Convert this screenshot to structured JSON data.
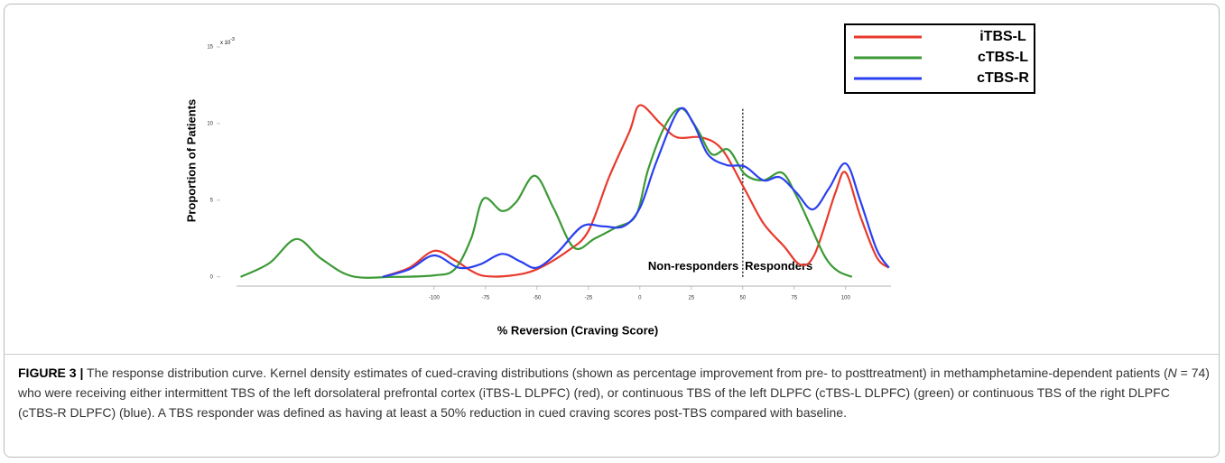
{
  "chart_data": {
    "type": "line",
    "xlabel": "% Reversion (Craving Score)",
    "ylabel": "Proportion  of Patients",
    "y_multiplier": {
      "base": "x 10",
      "exponent": "-3"
    },
    "xlim": [
      -196,
      122
    ],
    "ylim": [
      -0.6,
      15
    ],
    "xticks": [
      -100,
      -75,
      -50,
      -25,
      0,
      25,
      50,
      75,
      100
    ],
    "yticks": [
      0,
      5,
      10,
      15
    ],
    "legend": "top-right",
    "threshold": {
      "x": 50,
      "top": 11
    },
    "annotations": [
      {
        "text": "Non-responders",
        "x": 48,
        "y": 0.2,
        "align": "end"
      },
      {
        "text": "Responders",
        "x": 51,
        "y": 0.2,
        "align": "start"
      }
    ],
    "series": [
      {
        "name": "iTBS-L",
        "color": "#e8392c",
        "x": [
          -125,
          -112,
          -100,
          -90,
          -82,
          -75,
          -62,
          -50,
          -35,
          -25,
          -15,
          -5,
          0,
          10,
          18,
          30,
          40,
          51,
          60,
          70,
          78,
          85,
          95,
          100,
          107,
          115,
          121
        ],
        "values": [
          0,
          0.6,
          1.7,
          1.1,
          0.4,
          0.05,
          0.1,
          0.5,
          1.7,
          3.0,
          6.5,
          9.5,
          11.2,
          10.0,
          9.1,
          9.1,
          8.3,
          5.7,
          3.5,
          2.0,
          0.8,
          1.5,
          5.5,
          6.8,
          4.0,
          1.3,
          0.6
        ]
      },
      {
        "name": "cTBS-L",
        "color": "#3b9a35",
        "x": [
          -194,
          -180,
          -167,
          -155,
          -140,
          -120,
          -100,
          -90,
          -82,
          -76,
          -67,
          -60,
          -51,
          -42,
          -32,
          -22,
          -12,
          -2,
          4,
          12,
          20,
          28,
          35,
          43,
          51,
          60,
          69,
          76,
          83,
          90,
          96,
          103
        ],
        "values": [
          0,
          0.9,
          2.47,
          1.2,
          0.05,
          0,
          0.1,
          0.5,
          2.5,
          5.1,
          4.3,
          4.9,
          6.6,
          4.5,
          1.9,
          2.5,
          3.2,
          4.0,
          7.0,
          9.8,
          11.0,
          9.6,
          8.0,
          8.3,
          6.7,
          6.3,
          6.8,
          5.3,
          3.3,
          1.3,
          0.4,
          0
        ]
      },
      {
        "name": "cTBS-R",
        "color": "#2a3ff0",
        "x": [
          -125,
          -112,
          -100,
          -88,
          -78,
          -67,
          -58,
          -50,
          -40,
          -28,
          -18,
          -8,
          0,
          8,
          19,
          26,
          33,
          42,
          51,
          60,
          68,
          76,
          84,
          92,
          100,
          107,
          115,
          121
        ],
        "values": [
          0,
          0.5,
          1.4,
          0.6,
          0.8,
          1.5,
          1.0,
          0.6,
          1.6,
          3.3,
          3.3,
          3.3,
          4.5,
          7.5,
          10.9,
          10.0,
          8.0,
          7.3,
          7.2,
          6.3,
          6.5,
          5.5,
          4.4,
          5.8,
          7.4,
          5.0,
          1.8,
          0.6
        ]
      }
    ]
  },
  "caption": {
    "label": "FIGURE 3 |",
    "parts": [
      "The response distribution curve. Kernel density estimates of cued-craving distributions (shown as percentage improvement from pre- to posttreatment) in methamphetamine-dependent patients (",
      "N",
      " = 74) who were receiving either intermittent TBS of the left dorsolateral prefrontal cortex (iTBS-L DLPFC) (red), or continuous TBS of the left DLPFC (cTBS-L DLPFC) (green) or continuous TBS of the right DLPFC (cTBS-R DLPFC) (blue). A TBS responder was defined as having at least a 50% reduction in cued craving scores post-TBS compared with baseline."
    ]
  }
}
